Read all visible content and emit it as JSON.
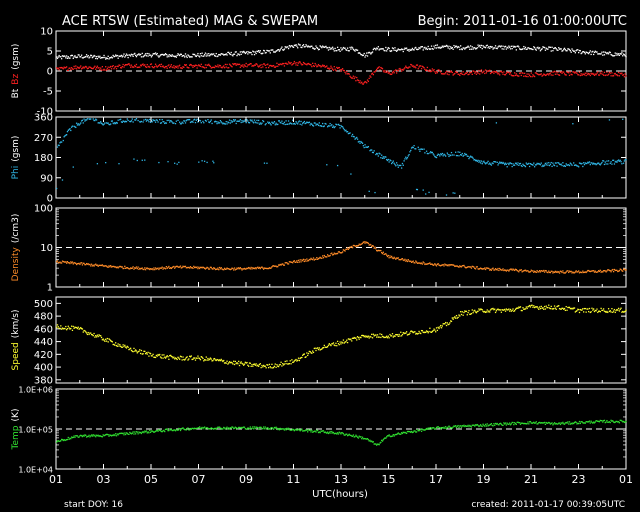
{
  "header": {
    "title": "ACE RTSW (Estimated) MAG & SWEPAM",
    "begin": "Begin: 2011-01-16 01:00:00UTC"
  },
  "footer": {
    "xlabel": "UTC(hours)",
    "start_doy": "start DOY:  16",
    "created": "created: 2011-01-17 00:39:05UTC"
  },
  "colors": {
    "bt": "#ffffff",
    "bz": "#ff2020",
    "phi": "#30b8e8",
    "density": "#ff8c28",
    "speed": "#ffff30",
    "temp": "#30e030"
  },
  "chart_data": {
    "type": "scatter",
    "x_ticks": [
      "01",
      "03",
      "05",
      "07",
      "09",
      "11",
      "13",
      "15",
      "17",
      "19",
      "21",
      "23",
      "01"
    ],
    "x_range_hours": [
      1,
      25
    ],
    "panels": [
      {
        "id": "mag",
        "ylabel_parts": [
          "Bt",
          "Bz",
          "(gsm)"
        ],
        "yticks": [
          "10",
          "5",
          "0",
          "-5",
          "-10"
        ],
        "ylim": [
          -10,
          10
        ],
        "scale": "linear",
        "dashed_line": 0,
        "series": [
          {
            "name": "Bt",
            "color": "bt",
            "x": [
              1,
              2,
              3,
              4,
              5,
              6,
              7,
              8,
              9,
              10,
              11,
              12,
              13,
              13.5,
              14,
              14.5,
              15,
              16,
              17,
              18,
              19,
              20,
              21,
              22,
              23,
              24,
              25
            ],
            "y": [
              3.5,
              3.8,
              3.6,
              4,
              4.2,
              4,
              4.1,
              4.3,
              4.6,
              5,
              6.5,
              6,
              5.5,
              5.8,
              4,
              6,
              5.5,
              5.5,
              6.2,
              6,
              6.2,
              6,
              5.8,
              5.6,
              5,
              4.5,
              4.2
            ]
          },
          {
            "name": "Bz",
            "color": "bz",
            "x": [
              1,
              2,
              3,
              4,
              5,
              6,
              7,
              8,
              9,
              10,
              11,
              12,
              13,
              13.5,
              14,
              14.5,
              15,
              16,
              17,
              18,
              19,
              20,
              21,
              22,
              23,
              24,
              25
            ],
            "y": [
              0.5,
              1.2,
              0.8,
              1.6,
              1.5,
              1.2,
              1.4,
              1.4,
              1.6,
              1.4,
              2.2,
              1.5,
              0.5,
              -1.5,
              -3,
              1,
              -0.5,
              1.5,
              0,
              -0.5,
              0,
              -0.5,
              -0.8,
              -0.4,
              -0.6,
              -0.5,
              -0.8
            ]
          }
        ]
      },
      {
        "id": "phi",
        "ylabel_parts": [
          "Phi",
          "(gsm)"
        ],
        "yticks": [
          "360",
          "270",
          "180",
          "90",
          "0"
        ],
        "ylim": [
          0,
          360
        ],
        "scale": "linear",
        "series": [
          {
            "name": "Phi",
            "color": "phi",
            "x": [
              1,
              1.5,
              2,
              2.5,
              3,
              4,
              5,
              6,
              7,
              8,
              9,
              10,
              11,
              12,
              13,
              13.5,
              14,
              14.5,
              15,
              15.5,
              16,
              17,
              18,
              19,
              20,
              21,
              22,
              23,
              24,
              25
            ],
            "y": [
              220,
              300,
              340,
              355,
              330,
              350,
              345,
              340,
              345,
              340,
              345,
              335,
              340,
              330,
              320,
              280,
              230,
              200,
              170,
              140,
              230,
              190,
              200,
              160,
              150,
              150,
              152,
              150,
              160,
              165
            ]
          }
        ]
      },
      {
        "id": "density",
        "ylabel_parts": [
          "Density",
          "(/cm3)"
        ],
        "yticks": [
          "100",
          "10",
          "1"
        ],
        "ylim": [
          1,
          100
        ],
        "scale": "log",
        "dashed_line": 10,
        "series": [
          {
            "name": "Density",
            "color": "density",
            "x": [
              1,
              2,
              3,
              4,
              5,
              6,
              7,
              8,
              9,
              10,
              11,
              12,
              13,
              13.5,
              14,
              14.5,
              15,
              16,
              17,
              18,
              19,
              20,
              21,
              22,
              23,
              24,
              25
            ],
            "y": [
              4.5,
              4,
              3.5,
              3.2,
              3,
              3.3,
              3.2,
              3,
              3,
              3.2,
              4.5,
              5.5,
              8,
              11,
              14,
              9,
              6,
              4.5,
              3.8,
              3.5,
              3,
              2.8,
              2.6,
              2.5,
              2.5,
              2.6,
              2.8
            ]
          }
        ]
      },
      {
        "id": "speed",
        "ylabel_parts": [
          "Speed",
          "(km/s)"
        ],
        "yticks": [
          "500",
          "480",
          "460",
          "440",
          "420",
          "400",
          "380"
        ],
        "ylim": [
          375,
          510
        ],
        "scale": "linear",
        "series": [
          {
            "name": "Speed",
            "color": "speed",
            "x": [
              1,
              2,
              3,
              4,
              5,
              6,
              7,
              8,
              9,
              10,
              11,
              12,
              13,
              14,
              15,
              16,
              17,
              17.5,
              18,
              19,
              20,
              21,
              22,
              23,
              24,
              25
            ],
            "y": [
              465,
              460,
              445,
              430,
              420,
              415,
              415,
              410,
              405,
              402,
              410,
              430,
              440,
              450,
              450,
              455,
              460,
              470,
              485,
              490,
              490,
              495,
              495,
              490,
              490,
              490
            ]
          }
        ]
      },
      {
        "id": "temp",
        "ylabel_parts": [
          "Temp",
          "(K)"
        ],
        "yticks": [
          "1.0E+06",
          "1.0E+05",
          "1.0E+04"
        ],
        "ylim": [
          10000,
          1000000
        ],
        "scale": "log",
        "dashed_line": 100000,
        "series": [
          {
            "name": "Temp",
            "color": "temp",
            "x": [
              1,
              2,
              3,
              4,
              5,
              6,
              7,
              8,
              9,
              10,
              11,
              12,
              13,
              14,
              14.5,
              15,
              16,
              17,
              18,
              19,
              20,
              21,
              22,
              23,
              24,
              25
            ],
            "y": [
              50000,
              70000,
              70000,
              80000,
              90000,
              100000,
              110000,
              110000,
              110000,
              110000,
              100000,
              90000,
              80000,
              60000,
              40000,
              70000,
              90000,
              110000,
              120000,
              130000,
              140000,
              150000,
              140000,
              150000,
              160000,
              160000
            ]
          }
        ]
      }
    ]
  }
}
